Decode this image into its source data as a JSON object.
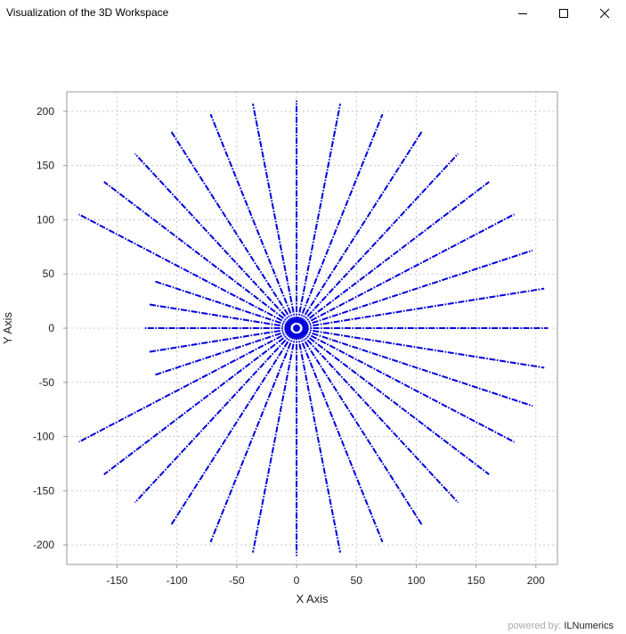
{
  "window": {
    "title": "Visualization of the 3D Workspace",
    "buttons": {
      "minimize_icon": "minimize-icon",
      "maximize_icon": "maximize-icon",
      "close_icon": "close-icon"
    }
  },
  "footer": {
    "prefix": "powered by: ",
    "brand": "ILNumerics"
  },
  "colors": {
    "series": "#0000dd",
    "grid": "#c8c8c8",
    "frame": "#9a9a9a"
  },
  "chart_data": {
    "type": "scatter",
    "title": "",
    "xlabel": "X Axis",
    "ylabel": "Y Axis",
    "xlim": [
      -192,
      218
    ],
    "ylim": [
      -218,
      218
    ],
    "xticks": [
      -150,
      -100,
      -50,
      0,
      50,
      100,
      150,
      200
    ],
    "yticks": [
      -200,
      -150,
      -100,
      -50,
      0,
      50,
      100,
      150,
      200
    ],
    "grid": true,
    "grid_style": "dotted",
    "marker_style": "dash-dot rays of points",
    "inner_radius": 5,
    "series": [
      {
        "name": "",
        "rays": [
          {
            "angle_deg": 0,
            "end": [
              210,
              0
            ]
          },
          {
            "angle_deg": 10,
            "end": [
              207,
              36.5
            ]
          },
          {
            "angle_deg": 20,
            "end": [
              197.3,
              71.8
            ]
          },
          {
            "angle_deg": 30,
            "end": [
              181.9,
              105
            ]
          },
          {
            "angle_deg": 40,
            "end": [
              160.9,
              135
            ]
          },
          {
            "angle_deg": 50,
            "end": [
              135,
              160.9
            ]
          },
          {
            "angle_deg": 60,
            "end": [
              105,
              181.9
            ]
          },
          {
            "angle_deg": 70,
            "end": [
              71.8,
              197.3
            ]
          },
          {
            "angle_deg": 80,
            "end": [
              36.5,
              207
            ]
          },
          {
            "angle_deg": 90,
            "end": [
              0,
              210
            ]
          },
          {
            "angle_deg": 100,
            "end": [
              -36.5,
              207
            ]
          },
          {
            "angle_deg": 110,
            "end": [
              -71.8,
              197.3
            ]
          },
          {
            "angle_deg": 120,
            "end": [
              -105,
              181.9
            ]
          },
          {
            "angle_deg": 130,
            "end": [
              -135,
              160.9
            ]
          },
          {
            "angle_deg": 140,
            "end": [
              -160.9,
              135
            ]
          },
          {
            "angle_deg": 150,
            "end": [
              -181.9,
              105
            ]
          },
          {
            "angle_deg": 160,
            "end": [
              -118,
              43
            ]
          },
          {
            "angle_deg": 170,
            "end": [
              -124,
              22
            ]
          },
          {
            "angle_deg": 180,
            "end": [
              -127,
              0
            ]
          },
          {
            "angle_deg": 190,
            "end": [
              -124,
              -22
            ]
          },
          {
            "angle_deg": 200,
            "end": [
              -118,
              -43
            ]
          },
          {
            "angle_deg": 210,
            "end": [
              -181.9,
              -105
            ]
          },
          {
            "angle_deg": 220,
            "end": [
              -160.9,
              -135
            ]
          },
          {
            "angle_deg": 230,
            "end": [
              -135,
              -160.9
            ]
          },
          {
            "angle_deg": 240,
            "end": [
              -105,
              -181.9
            ]
          },
          {
            "angle_deg": 250,
            "end": [
              -71.8,
              -197.3
            ]
          },
          {
            "angle_deg": 260,
            "end": [
              -36.5,
              -207
            ]
          },
          {
            "angle_deg": 270,
            "end": [
              0,
              -210
            ]
          },
          {
            "angle_deg": 280,
            "end": [
              36.5,
              -207
            ]
          },
          {
            "angle_deg": 290,
            "end": [
              71.8,
              -197.3
            ]
          },
          {
            "angle_deg": 300,
            "end": [
              105,
              -181.9
            ]
          },
          {
            "angle_deg": 310,
            "end": [
              135,
              -160.9
            ]
          },
          {
            "angle_deg": 320,
            "end": [
              160.9,
              -135
            ]
          },
          {
            "angle_deg": 330,
            "end": [
              181.9,
              -105
            ]
          },
          {
            "angle_deg": 340,
            "end": [
              197.3,
              -71.8
            ]
          },
          {
            "angle_deg": 350,
            "end": [
              207,
              -36.5
            ]
          }
        ]
      }
    ]
  }
}
